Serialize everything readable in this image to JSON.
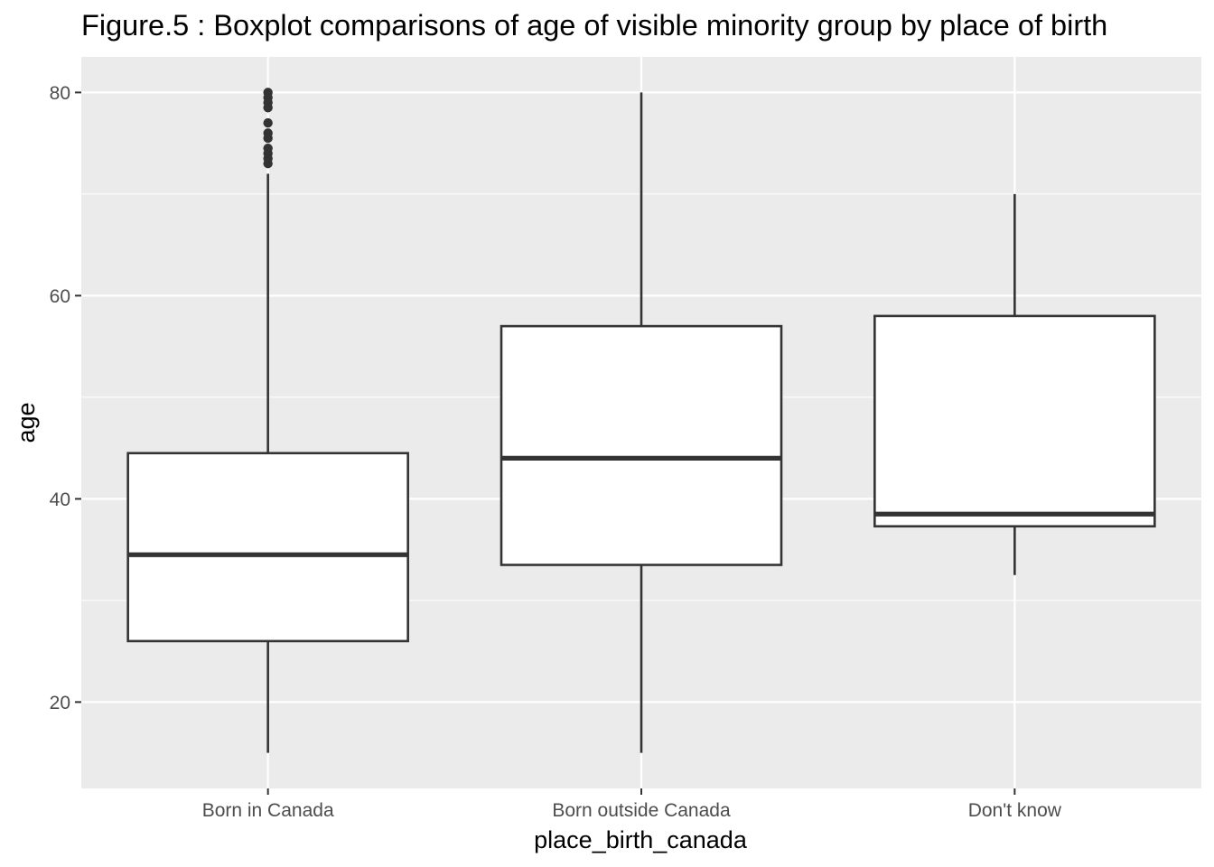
{
  "chart_data": {
    "type": "boxplot",
    "title": "Figure.5 : Boxplot comparisons of age of visible minority group by place of birth",
    "xlabel": "place_birth_canada",
    "ylabel": "age",
    "ylim": [
      11.5,
      83.5
    ],
    "yticks": [
      20,
      40,
      60,
      80
    ],
    "grid": true,
    "categories": [
      "Born in Canada",
      "Born outside Canada",
      "Don't know"
    ],
    "boxes": [
      {
        "category": "Born in Canada",
        "whisker_low": 15,
        "q1": 26,
        "median": 34.5,
        "q3": 44.5,
        "whisker_high": 72,
        "outliers": [
          73,
          73.5,
          74,
          74.5,
          75.5,
          76,
          77,
          78.5,
          79,
          79.5,
          80
        ]
      },
      {
        "category": "Born outside Canada",
        "whisker_low": 15,
        "q1": 33.5,
        "median": 44,
        "q3": 57,
        "whisker_high": 80,
        "outliers": []
      },
      {
        "category": "Don't know",
        "whisker_low": 32.5,
        "q1": 37.3,
        "median": 38.5,
        "q3": 58,
        "whisker_high": 70,
        "outliers": []
      }
    ],
    "colors": {
      "panel": "#ebebeb",
      "grid": "#ffffff",
      "box_line": "#333333",
      "box_fill": "#ffffff"
    }
  }
}
